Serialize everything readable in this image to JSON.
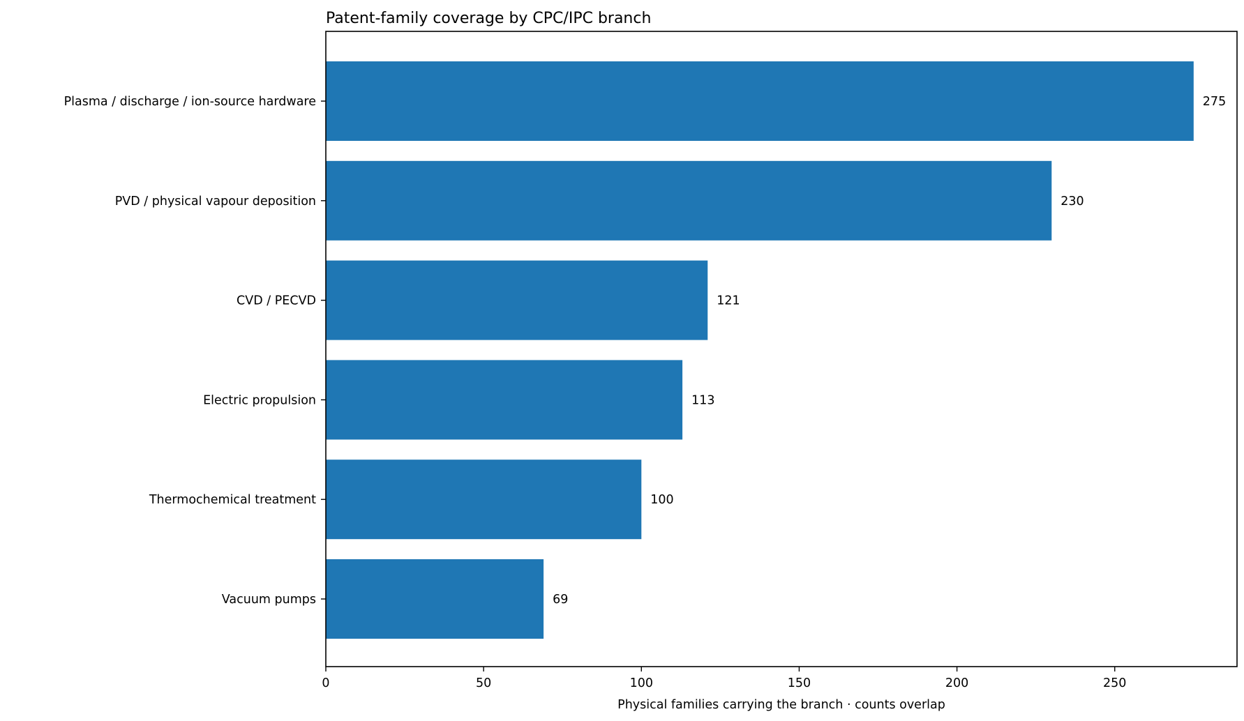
{
  "chart_data": {
    "type": "bar",
    "orientation": "horizontal",
    "title": "Patent-family coverage by CPC/IPC branch",
    "xlabel": "Physical families carrying the branch · counts overlap",
    "ylabel": "",
    "categories": [
      "Plasma / discharge / ion-source hardware",
      "PVD / physical vapour deposition",
      "CVD / PECVD",
      "Electric propulsion",
      "Thermochemical treatment",
      "Vacuum pumps"
    ],
    "values": [
      275,
      230,
      121,
      113,
      100,
      69
    ],
    "data_labels": [
      "275",
      "230",
      "121",
      "113",
      "100",
      "69"
    ],
    "xlim": [
      0,
      288.75
    ],
    "x_ticks": [
      0,
      50,
      100,
      150,
      200,
      250
    ],
    "x_tick_labels": [
      "0",
      "50",
      "100",
      "150",
      "200",
      "250"
    ],
    "grid": false,
    "legend": "none",
    "bar_color": "#1f77b4"
  }
}
